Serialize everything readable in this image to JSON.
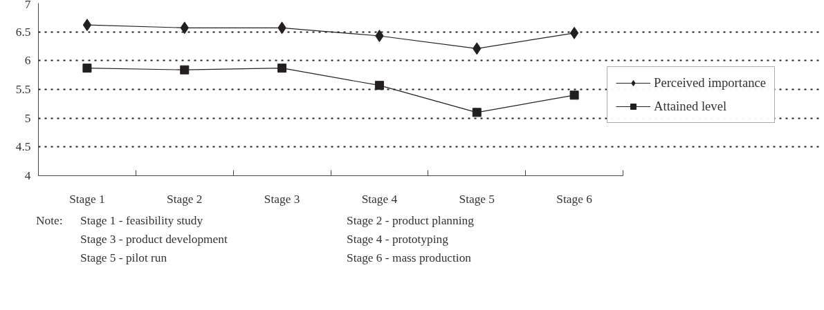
{
  "chart_data": {
    "type": "line",
    "categories": [
      "Stage 1",
      "Stage 2",
      "Stage 3",
      "Stage 4",
      "Stage 5",
      "Stage 6"
    ],
    "series": [
      {
        "name": "Perceived importance",
        "color": "#231f20",
        "marker": "diamond",
        "values": [
          6.62,
          6.57,
          6.57,
          6.43,
          6.21,
          6.48
        ]
      },
      {
        "name": "Attained level",
        "color": "#231f20",
        "marker": "square",
        "values": [
          5.87,
          5.84,
          5.87,
          5.57,
          5.1,
          5.4
        ]
      }
    ],
    "ylim": [
      4,
      7
    ],
    "yticks": [
      4,
      4.5,
      5,
      5.5,
      6,
      6.5,
      7
    ],
    "grid": "y",
    "legend": "right",
    "line_style": "solid",
    "annotations": [
      "Note:",
      "Stage 1 - feasibility study",
      "Stage 2 - product planning",
      "Stage 3 - product development",
      "Stage 4 - prototyping",
      "Stage 5 - pilot run",
      "Stage 6 - mass production"
    ]
  }
}
